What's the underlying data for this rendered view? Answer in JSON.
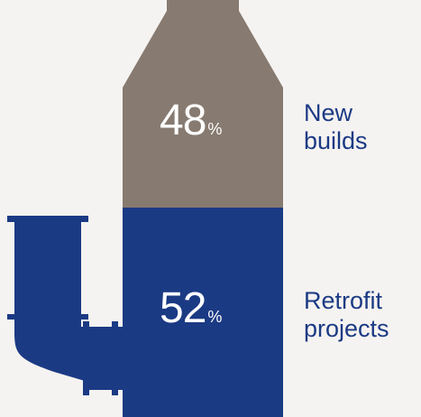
{
  "colors": {
    "background": "#f5f3f1",
    "new_builds": "#877a70",
    "retrofit": "#1b3a84"
  },
  "icon": "chimney-flue-pipe-icon",
  "chart_data": {
    "type": "bar",
    "stacked": true,
    "unit": "%",
    "segments": [
      {
        "key": "new_builds",
        "value": 48,
        "value_text": "48",
        "unit_text": "%",
        "label_lines": [
          "New",
          "builds"
        ]
      },
      {
        "key": "retrofit",
        "value": 52,
        "value_text": "52",
        "unit_text": "%",
        "label_lines": [
          "Retrofit",
          "projects"
        ]
      }
    ]
  }
}
